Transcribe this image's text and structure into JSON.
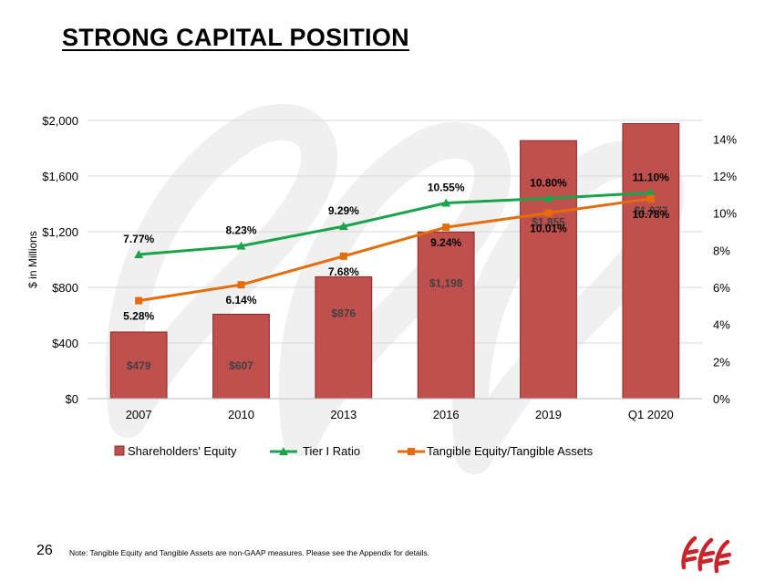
{
  "slide": {
    "title": "STRONG CAPITAL POSITION",
    "page_number": "26",
    "note": "Note: Tangible Equity and Tangible Assets are non-GAAP measures. Please see the Appendix for details."
  },
  "logo": {
    "icon": "company-logo-icon",
    "color": "#c8242b"
  },
  "colors": {
    "bar": "#c0504d",
    "bar_border": "#8b2a28",
    "tier": "#1aa34a",
    "tangible": "#e46c0a",
    "grid": "#d9d9d9",
    "label": "#404040"
  },
  "chart_data": {
    "type": "bar",
    "categories": [
      "2007",
      "2010",
      "2013",
      "2016",
      "2019",
      "Q1 2020"
    ],
    "ylabel": "$ in Millions",
    "ylim": [
      0,
      2000
    ],
    "yticks": [
      0,
      400,
      800,
      1200,
      1600,
      2000
    ],
    "ytick_labels": [
      "$0",
      "$400",
      "$800",
      "$1,200",
      "$1,600",
      "$2,000"
    ],
    "y2lim": [
      0,
      15
    ],
    "y2ticks": [
      0,
      2,
      4,
      6,
      8,
      10,
      12,
      14
    ],
    "y2tick_labels": [
      "0%",
      "2%",
      "4%",
      "6%",
      "8%",
      "10%",
      "12%",
      "14%"
    ],
    "grid": true,
    "legend_position": "bottom",
    "series": [
      {
        "name": "Shareholders' Equity",
        "type": "bar",
        "axis": "left",
        "values": [
          479,
          607,
          876,
          1198,
          1855,
          1977
        ],
        "labels": [
          "$479",
          "$607",
          "$876",
          "$1,198",
          "$1,855",
          "$1,977"
        ]
      },
      {
        "name": "Tier I Ratio",
        "type": "line",
        "axis": "right",
        "marker": "triangle",
        "values": [
          7.77,
          8.23,
          9.29,
          10.55,
          10.8,
          11.1
        ],
        "labels": [
          "7.77%",
          "8.23%",
          "9.29%",
          "10.55%",
          "10.80%",
          "11.10%"
        ]
      },
      {
        "name": "Tangible Equity/Tangible Assets",
        "type": "line",
        "axis": "right",
        "marker": "square",
        "values": [
          5.28,
          6.14,
          7.68,
          9.24,
          10.01,
          10.78
        ],
        "labels": [
          "5.28%",
          "6.14%",
          "7.68%",
          "9.24%",
          "10.01%",
          "10.78%"
        ]
      }
    ]
  }
}
